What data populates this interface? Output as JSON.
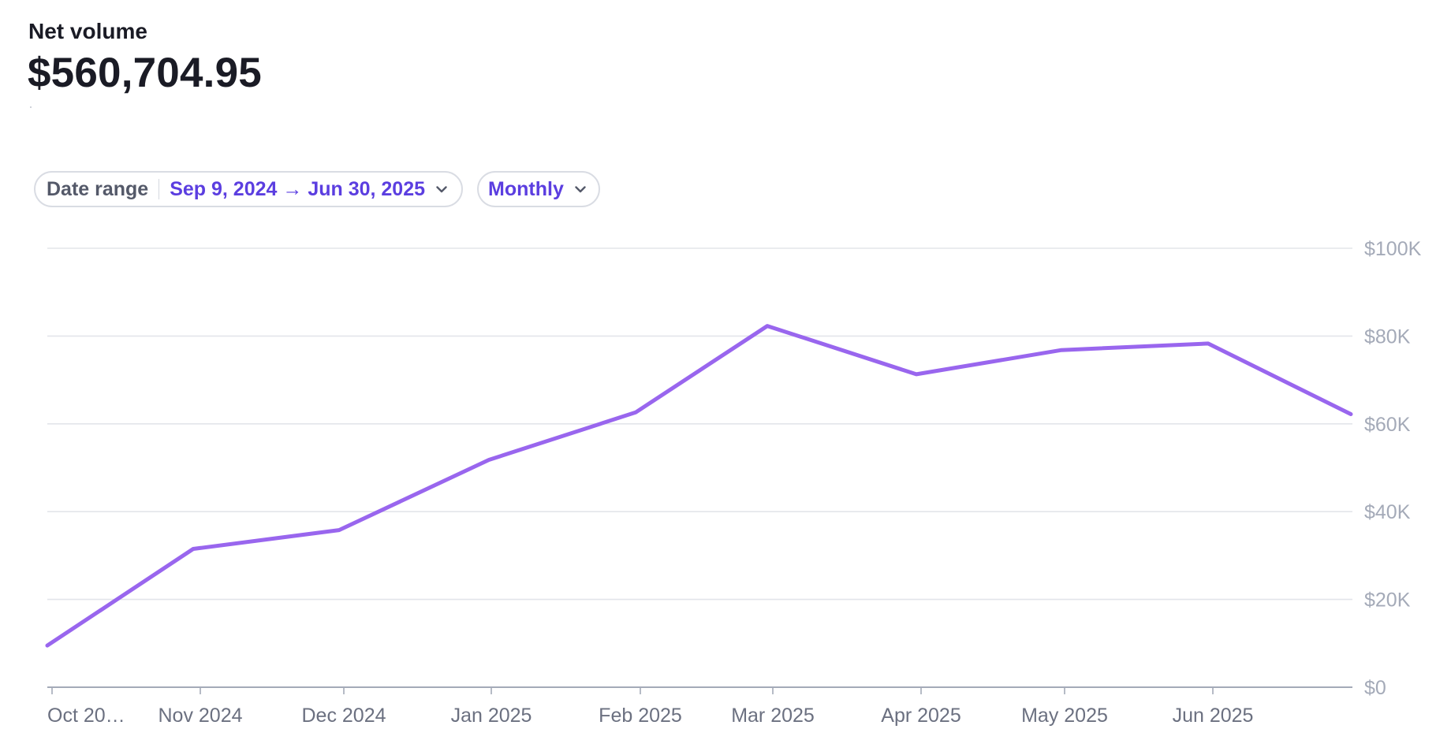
{
  "metric": {
    "label": "Net volume",
    "value": "$560,704.95"
  },
  "filters": {
    "date_range": {
      "label": "Date range",
      "value": "Sep 9, 2024 → Jun 30, 2025",
      "icon": "chevron-down-icon"
    },
    "interval": {
      "value": "Monthly",
      "icon": "chevron-down-icon"
    }
  },
  "colors": {
    "line": "#9966ee",
    "grid": "#e3e5ea",
    "axis": "#a4aab8",
    "tick_text": "#6b7080",
    "accent": "#5b3ee0"
  },
  "chart_data": {
    "type": "line",
    "title": "",
    "xlabel": "",
    "ylabel": "",
    "ylim": [
      0,
      100000
    ],
    "yaxis_position": "right",
    "y_ticks": [
      0,
      20000,
      40000,
      60000,
      80000,
      100000
    ],
    "y_tick_labels": [
      "$0",
      "$20K",
      "$40K",
      "$60K",
      "$80K",
      "$100K"
    ],
    "categories": [
      "Oct 20…",
      "Nov 2024",
      "Dec 2024",
      "Jan 2025",
      "Feb 2025",
      "Mar 2025",
      "Apr 2025",
      "May 2025",
      "Jun 2025",
      ""
    ],
    "series": [
      {
        "name": "Net volume",
        "values": [
          9500,
          31500,
          35800,
          51800,
          62600,
          82300,
          71300,
          76800,
          78300,
          62200
        ]
      }
    ]
  }
}
